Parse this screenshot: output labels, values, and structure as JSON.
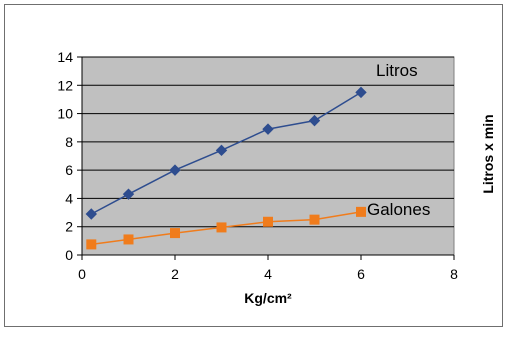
{
  "chart_data": {
    "type": "line",
    "x": [
      0.2,
      1,
      2,
      3,
      4,
      5,
      6
    ],
    "series": [
      {
        "name": "Litros",
        "values": [
          2.9,
          4.3,
          6.0,
          7.4,
          8.9,
          9.5,
          11.5
        ],
        "color": "#2e4d8f",
        "marker": "diamond"
      },
      {
        "name": "Galones",
        "values": [
          0.75,
          1.1,
          1.55,
          1.95,
          2.35,
          2.5,
          3.05
        ],
        "color": "#f07c1c",
        "marker": "square"
      }
    ],
    "xlabel": "Kg/cm²",
    "ylabel": "Litros x min",
    "xlim": [
      0,
      8
    ],
    "ylim": [
      0,
      14
    ],
    "xticks": [
      "0",
      "2",
      "4",
      "6",
      "8"
    ],
    "yticks": [
      "0",
      "2",
      "4",
      "6",
      "8",
      "10",
      "12",
      "14"
    ],
    "grid": "horizontal",
    "plot_background": "#c0c0c0",
    "legend": "none"
  }
}
